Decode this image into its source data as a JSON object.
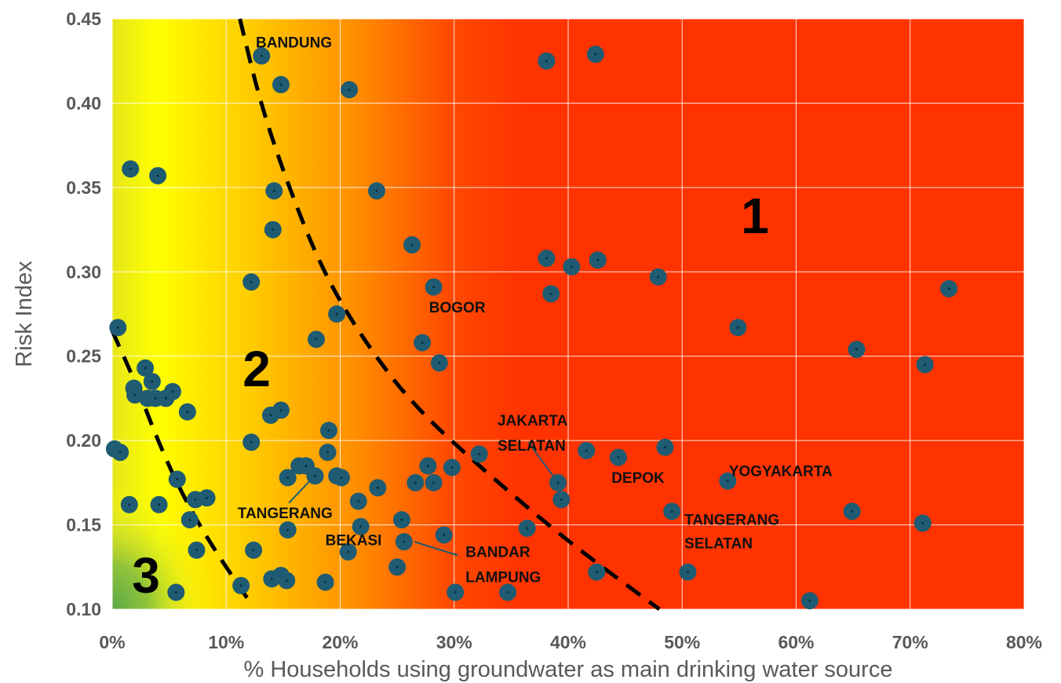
{
  "chart_data": {
    "type": "scatter",
    "xlabel": "% Households using groundwater as main drinking water source",
    "ylabel": "Risk Index",
    "xlim": [
      0,
      0.8
    ],
    "ylim": [
      0.1,
      0.45
    ],
    "x_ticks": [
      "0%",
      "10%",
      "20%",
      "30%",
      "40%",
      "50%",
      "60%",
      "70%",
      "80%"
    ],
    "y_ticks": [
      "0.10",
      "0.15",
      "0.20",
      "0.25",
      "0.30",
      "0.35",
      "0.40",
      "0.45"
    ],
    "grid": true,
    "colors": {
      "marker": "#1f5b73",
      "marker_center": "#0d2f3d",
      "gridline": "#ffffff",
      "zone_high": "#ff3300",
      "zone_mid": "#ffff00",
      "zone_low": "#6ab04c",
      "boundary": "#000000"
    },
    "zones": [
      "1",
      "2",
      "3"
    ],
    "boundaries": [
      {
        "points": [
          [
            0.112,
            0.45
          ],
          [
            0.13,
            0.4
          ],
          [
            0.155,
            0.35
          ],
          [
            0.185,
            0.3
          ],
          [
            0.22,
            0.26
          ],
          [
            0.265,
            0.22
          ],
          [
            0.33,
            0.18
          ],
          [
            0.4,
            0.14
          ],
          [
            0.48,
            0.1
          ]
        ]
      },
      {
        "points": [
          [
            0.0,
            0.265
          ],
          [
            0.02,
            0.235
          ],
          [
            0.04,
            0.2
          ],
          [
            0.06,
            0.17
          ],
          [
            0.085,
            0.14
          ],
          [
            0.12,
            0.105
          ]
        ]
      }
    ],
    "labels": [
      {
        "text": "BANDUNG",
        "x": 0.126,
        "y": 0.433
      },
      {
        "text": "BOGOR",
        "x": 0.278,
        "y": 0.276
      },
      {
        "text": "JAKARTA",
        "x": 0.338,
        "y": 0.209
      },
      {
        "text": "SELATAN",
        "x": 0.338,
        "y": 0.194
      },
      {
        "text": "DEPOK",
        "x": 0.438,
        "y": 0.175
      },
      {
        "text": "YOGYAKARTA",
        "x": 0.541,
        "y": 0.179
      },
      {
        "text": "TANGERANG",
        "x": 0.502,
        "y": 0.15
      },
      {
        "text": "SELATAN",
        "x": 0.502,
        "y": 0.136
      },
      {
        "text": "TANGERANG",
        "x": 0.11,
        "y": 0.154
      },
      {
        "text": "BEKASI",
        "x": 0.187,
        "y": 0.138
      },
      {
        "text": "BANDAR",
        "x": 0.31,
        "y": 0.131
      },
      {
        "text": "LAMPUNG",
        "x": 0.31,
        "y": 0.116
      }
    ],
    "leaders": [
      {
        "from": [
          0.365,
          0.199
        ],
        "to": [
          0.39,
          0.176
        ]
      },
      {
        "from": [
          0.155,
          0.163
        ],
        "to": [
          0.176,
          0.178
        ]
      },
      {
        "from": [
          0.265,
          0.14
        ],
        "to": [
          0.303,
          0.132
        ]
      }
    ],
    "points": [
      {
        "x": 0.131,
        "y": 0.428
      },
      {
        "x": 0.148,
        "y": 0.411
      },
      {
        "x": 0.208,
        "y": 0.408
      },
      {
        "x": 0.381,
        "y": 0.425
      },
      {
        "x": 0.424,
        "y": 0.429
      },
      {
        "x": 0.016,
        "y": 0.361
      },
      {
        "x": 0.04,
        "y": 0.357
      },
      {
        "x": 0.142,
        "y": 0.348
      },
      {
        "x": 0.232,
        "y": 0.348
      },
      {
        "x": 0.141,
        "y": 0.325
      },
      {
        "x": 0.263,
        "y": 0.316
      },
      {
        "x": 0.381,
        "y": 0.308
      },
      {
        "x": 0.403,
        "y": 0.303
      },
      {
        "x": 0.426,
        "y": 0.307
      },
      {
        "x": 0.479,
        "y": 0.297
      },
      {
        "x": 0.122,
        "y": 0.294
      },
      {
        "x": 0.282,
        "y": 0.291
      },
      {
        "x": 0.385,
        "y": 0.287
      },
      {
        "x": 0.734,
        "y": 0.29
      },
      {
        "x": 0.197,
        "y": 0.275
      },
      {
        "x": 0.549,
        "y": 0.267
      },
      {
        "x": 0.005,
        "y": 0.267
      },
      {
        "x": 0.179,
        "y": 0.26
      },
      {
        "x": 0.272,
        "y": 0.258
      },
      {
        "x": 0.653,
        "y": 0.254
      },
      {
        "x": 0.287,
        "y": 0.246
      },
      {
        "x": 0.713,
        "y": 0.245
      },
      {
        "x": 0.029,
        "y": 0.243
      },
      {
        "x": 0.035,
        "y": 0.235
      },
      {
        "x": 0.019,
        "y": 0.231
      },
      {
        "x": 0.053,
        "y": 0.229
      },
      {
        "x": 0.02,
        "y": 0.227
      },
      {
        "x": 0.031,
        "y": 0.225
      },
      {
        "x": 0.038,
        "y": 0.225
      },
      {
        "x": 0.047,
        "y": 0.225
      },
      {
        "x": 0.066,
        "y": 0.217
      },
      {
        "x": 0.148,
        "y": 0.218
      },
      {
        "x": 0.139,
        "y": 0.215
      },
      {
        "x": 0.19,
        "y": 0.206
      },
      {
        "x": 0.122,
        "y": 0.199
      },
      {
        "x": 0.002,
        "y": 0.195
      },
      {
        "x": 0.007,
        "y": 0.193
      },
      {
        "x": 0.189,
        "y": 0.193
      },
      {
        "x": 0.322,
        "y": 0.192
      },
      {
        "x": 0.416,
        "y": 0.194
      },
      {
        "x": 0.444,
        "y": 0.19
      },
      {
        "x": 0.485,
        "y": 0.196
      },
      {
        "x": 0.164,
        "y": 0.185
      },
      {
        "x": 0.17,
        "y": 0.185
      },
      {
        "x": 0.277,
        "y": 0.185
      },
      {
        "x": 0.298,
        "y": 0.184
      },
      {
        "x": 0.154,
        "y": 0.178
      },
      {
        "x": 0.178,
        "y": 0.179
      },
      {
        "x": 0.197,
        "y": 0.179
      },
      {
        "x": 0.201,
        "y": 0.178
      },
      {
        "x": 0.057,
        "y": 0.177
      },
      {
        "x": 0.266,
        "y": 0.175
      },
      {
        "x": 0.282,
        "y": 0.175
      },
      {
        "x": 0.391,
        "y": 0.175
      },
      {
        "x": 0.54,
        "y": 0.176
      },
      {
        "x": 0.233,
        "y": 0.172
      },
      {
        "x": 0.015,
        "y": 0.162
      },
      {
        "x": 0.041,
        "y": 0.162
      },
      {
        "x": 0.073,
        "y": 0.165
      },
      {
        "x": 0.083,
        "y": 0.166
      },
      {
        "x": 0.216,
        "y": 0.164
      },
      {
        "x": 0.394,
        "y": 0.165
      },
      {
        "x": 0.491,
        "y": 0.158
      },
      {
        "x": 0.649,
        "y": 0.158
      },
      {
        "x": 0.068,
        "y": 0.153
      },
      {
        "x": 0.254,
        "y": 0.153
      },
      {
        "x": 0.711,
        "y": 0.151
      },
      {
        "x": 0.154,
        "y": 0.147
      },
      {
        "x": 0.218,
        "y": 0.149
      },
      {
        "x": 0.364,
        "y": 0.148
      },
      {
        "x": 0.291,
        "y": 0.144
      },
      {
        "x": 0.256,
        "y": 0.14
      },
      {
        "x": 0.074,
        "y": 0.135
      },
      {
        "x": 0.124,
        "y": 0.135
      },
      {
        "x": 0.207,
        "y": 0.134
      },
      {
        "x": 0.25,
        "y": 0.125
      },
      {
        "x": 0.425,
        "y": 0.122
      },
      {
        "x": 0.505,
        "y": 0.122
      },
      {
        "x": 0.14,
        "y": 0.118
      },
      {
        "x": 0.148,
        "y": 0.12
      },
      {
        "x": 0.153,
        "y": 0.117
      },
      {
        "x": 0.187,
        "y": 0.116
      },
      {
        "x": 0.113,
        "y": 0.114
      },
      {
        "x": 0.056,
        "y": 0.11
      },
      {
        "x": 0.301,
        "y": 0.11
      },
      {
        "x": 0.347,
        "y": 0.11
      },
      {
        "x": 0.612,
        "y": 0.105
      }
    ]
  }
}
